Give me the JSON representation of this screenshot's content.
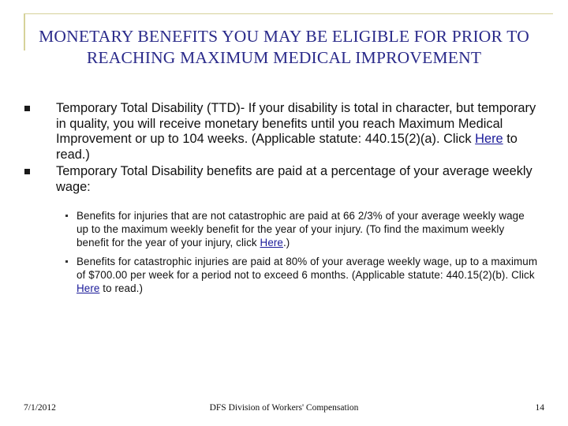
{
  "slide": {
    "title": "MONETARY BENEFITS YOU MAY BE ELIGIBLE FOR PRIOR TO REACHING MAXIMUM MEDICAL IMPROVEMENT",
    "bullets": [
      {
        "text_before": "Temporary Total Disability (TTD)- If your disability is total in character, but temporary in quality, you will receive monetary benefits until you reach Maximum Medical Improvement or up to 104 weeks. (Applicable statute: 440.15(2)(a). Click ",
        "link": "Here",
        "text_after": " to read.)"
      },
      {
        "text": "Temporary Total Disability benefits are paid at a percentage of your average weekly wage:"
      }
    ],
    "sub_bullets": [
      {
        "text_before": "Benefits for injuries that are not catastrophic are paid at 66 2/3% of your average weekly wage up to the maximum weekly benefit for the year of your injury. (To find the maximum weekly benefit for the year of your injury, click ",
        "link": "Here",
        "text_after": ".)"
      },
      {
        "text_before": " Benefits for catastrophic injuries are paid at 80% of your average weekly wage, up to a maximum of $700.00 per week for a period not to exceed 6 months. (Applicable statute: 440.15(2)(b). Click ",
        "link": "Here",
        "text_after": " to read.)"
      }
    ],
    "footer": {
      "date": "7/1/2012",
      "center": "DFS Division of Workers' Compensation",
      "page": "14"
    }
  }
}
